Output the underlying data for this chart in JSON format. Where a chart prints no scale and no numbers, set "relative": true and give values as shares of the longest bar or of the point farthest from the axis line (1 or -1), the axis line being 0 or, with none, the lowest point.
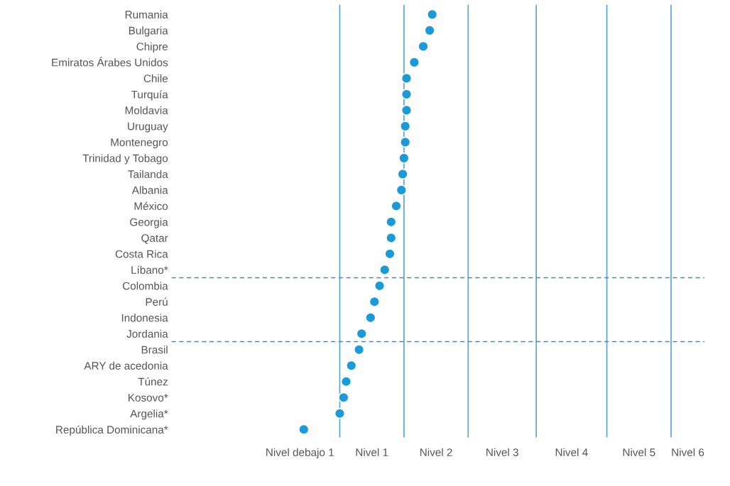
{
  "chart_data": {
    "type": "scatter",
    "categories": [
      "Rumania",
      "Bulgaria",
      "Chipre",
      "Emiratos Árabes Unidos",
      "Chile",
      "Turquía",
      "Moldavia",
      "Uruguay",
      "Montenegro",
      "Trinidad y Tobago",
      "Tailanda",
      "Albania",
      "México",
      "Georgia",
      "Qatar",
      "Costa Rica",
      "Líbano*",
      "Colombia",
      "Perú",
      "Indonesia",
      "Jordania",
      "Brasil",
      "ARY de acedonia",
      "Túnez",
      "Kosovo*",
      "Argelia*",
      "República Dominicana*"
    ],
    "orientation": "horizontal",
    "relative": true,
    "series": [
      {
        "color": "#1a9ad6",
        "values": [
          1.0,
          0.98,
          0.93,
          0.86,
          0.8,
          0.8,
          0.8,
          0.79,
          0.79,
          0.78,
          0.77,
          0.76,
          0.72,
          0.68,
          0.68,
          0.67,
          0.63,
          0.59,
          0.55,
          0.52,
          0.45,
          0.43,
          0.37,
          0.33,
          0.31,
          0.28,
          0.0
        ]
      }
    ],
    "marker": "circle",
    "ref_lines": [
      {
        "axis": "x",
        "value": 0.28,
        "color": "#5ba3d0",
        "line_style": "solid"
      },
      {
        "axis": "x",
        "value": 0.78,
        "color": "#5ba3d0",
        "line_style": "solid"
      },
      {
        "axis": "x",
        "value": 1.28,
        "color": "#5ba3d0",
        "line_style": "solid"
      },
      {
        "axis": "x",
        "value": 1.81,
        "color": "#5ba3d0",
        "line_style": "solid"
      },
      {
        "axis": "x",
        "value": 2.36,
        "color": "#5ba3d0",
        "line_style": "solid"
      },
      {
        "axis": "x",
        "value": 2.86,
        "color": "#5ba3d0",
        "line_style": "solid"
      }
    ],
    "annotations": [
      "Nivel debajo 1",
      "Nivel 1",
      "Nivel 2",
      "Nivel 3",
      "Nivel 4",
      "Nivel 5",
      "Nivel 6"
    ]
  }
}
